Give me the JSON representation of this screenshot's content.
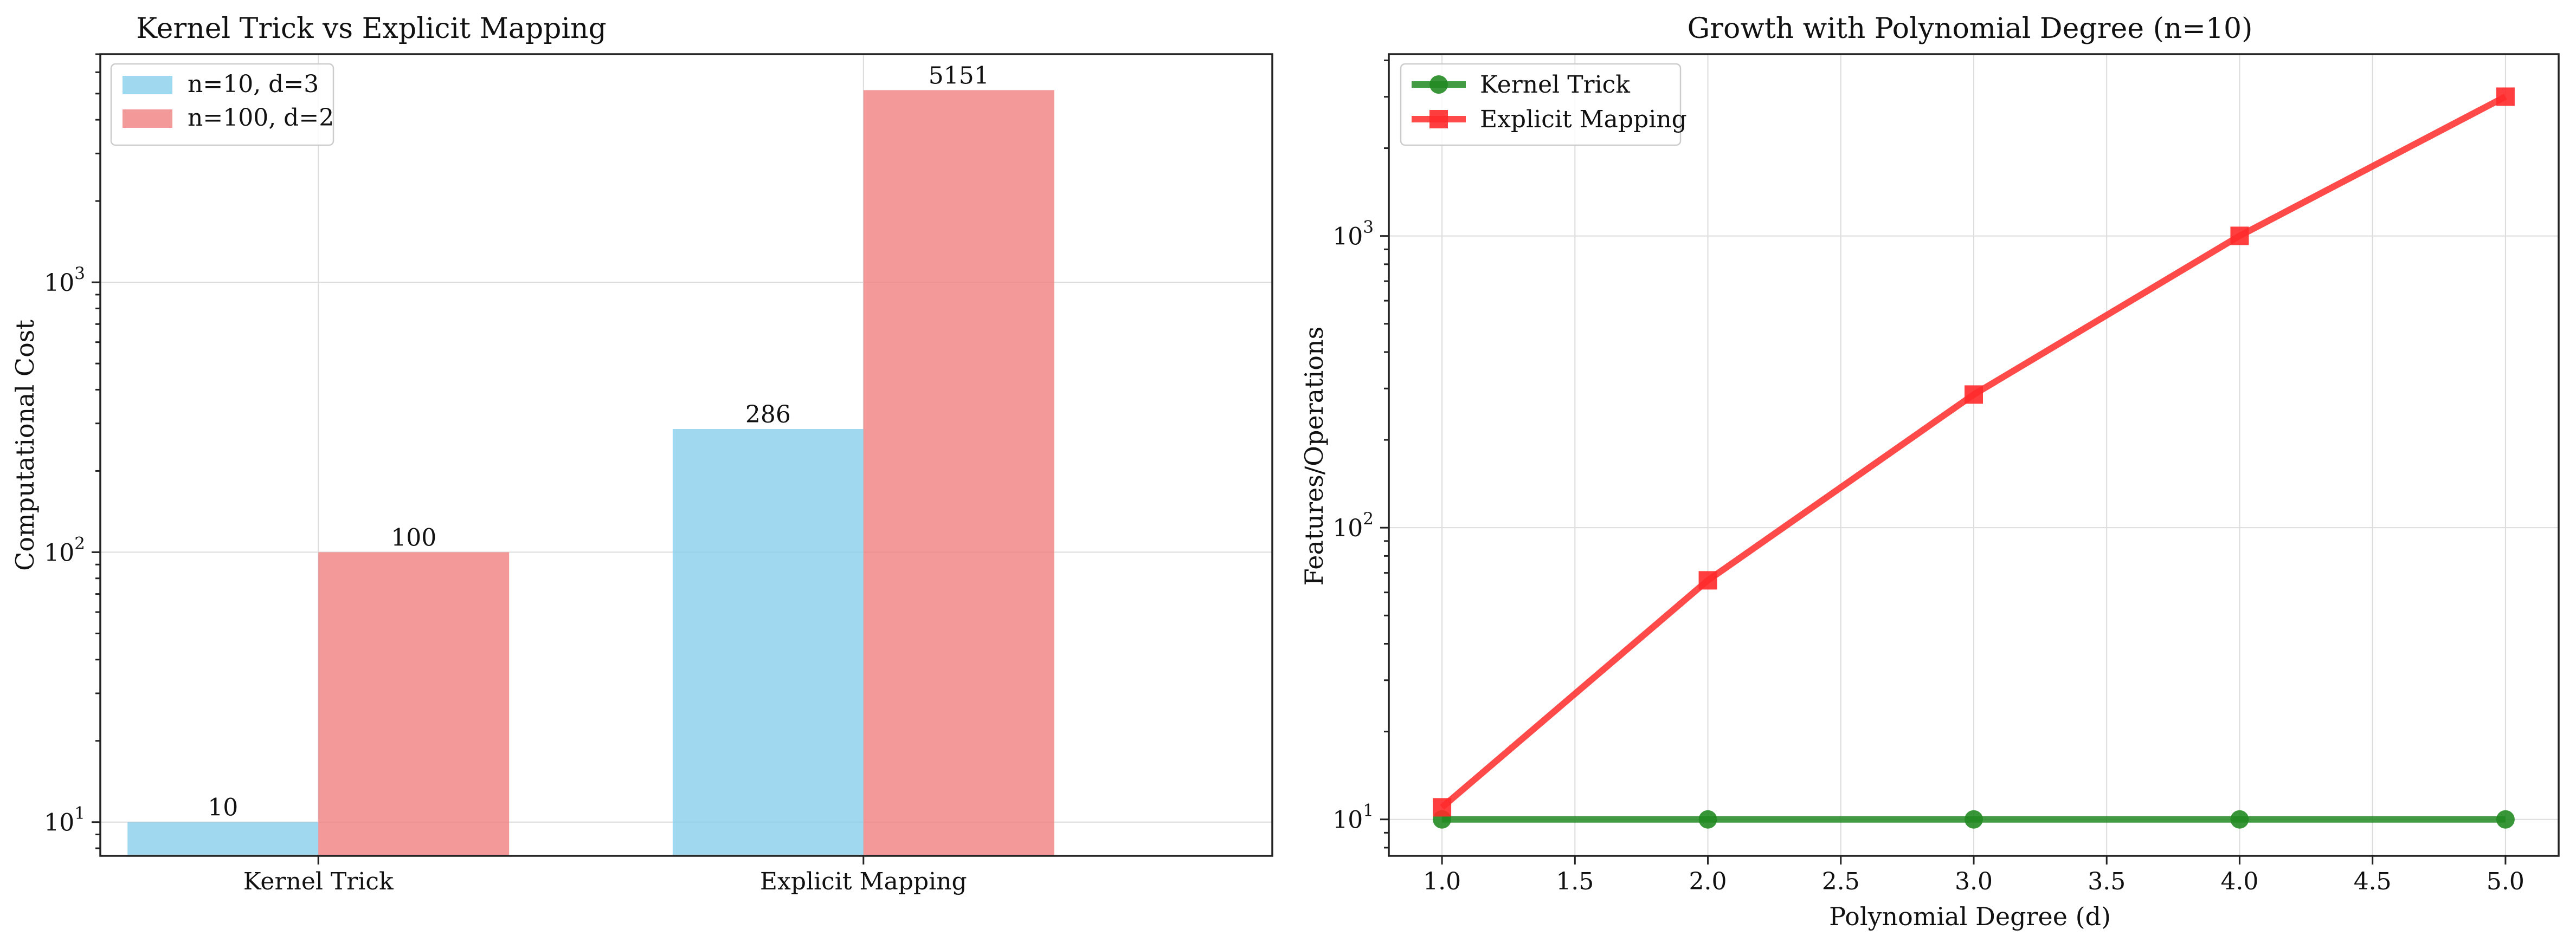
{
  "chart_data": [
    {
      "type": "bar",
      "title": "Kernel Trick vs Explicit Mapping",
      "xlabel": "",
      "ylabel": "Computational Cost",
      "yscale": "log",
      "ylim": [
        7.5,
        7000
      ],
      "y_ticks": [
        "10¹",
        "10²",
        "10³"
      ],
      "categories": [
        "Kernel Trick",
        "Explicit Mapping"
      ],
      "series": [
        {
          "name": "n=10, d=3",
          "values": [
            10,
            286
          ],
          "color": "#87CEEB"
        },
        {
          "name": "n=100, d=2",
          "values": [
            100,
            5151
          ],
          "color": "#F08080"
        }
      ],
      "data_labels": [
        [
          "10",
          "286"
        ],
        [
          "100",
          "5151"
        ]
      ],
      "legend": "upper-left",
      "grid": true
    },
    {
      "type": "line",
      "title": "Growth with Polynomial Degree (n=10)",
      "xlabel": "Polynomial Degree (d)",
      "ylabel": "Features/Operations",
      "yscale": "log",
      "xlim": [
        0.8,
        5.2
      ],
      "ylim": [
        7.5,
        4200
      ],
      "x_ticks": [
        "1.0",
        "1.5",
        "2.0",
        "2.5",
        "3.0",
        "3.5",
        "4.0",
        "4.5",
        "5.0"
      ],
      "y_ticks": [
        "10¹",
        "10²",
        "10³"
      ],
      "x": [
        1,
        2,
        3,
        4,
        5
      ],
      "series": [
        {
          "name": "Kernel Trick",
          "values": [
            10,
            10,
            10,
            10,
            10
          ],
          "color": "#228B22",
          "marker": "circle"
        },
        {
          "name": "Explicit Mapping",
          "values": [
            11,
            66,
            286,
            1001,
            3003
          ],
          "color": "#FF2A2A",
          "marker": "square"
        }
      ],
      "legend": "upper-left",
      "grid": true
    }
  ]
}
